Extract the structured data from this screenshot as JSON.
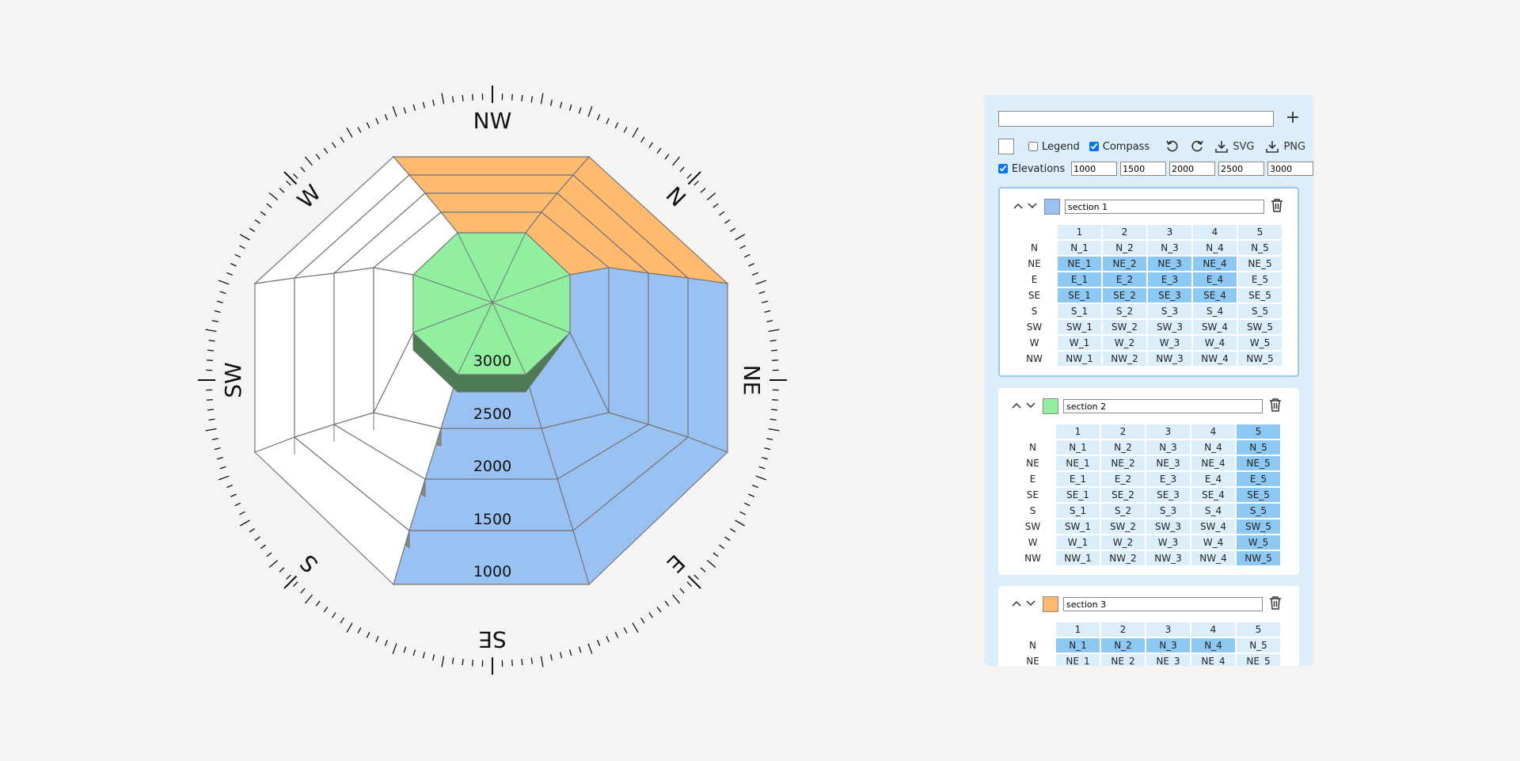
{
  "rose": {
    "compass_labels": [
      "NW",
      "N",
      "NE",
      "E",
      "SE",
      "S",
      "SW",
      "W"
    ],
    "elevations": [
      "3000",
      "2500",
      "2000",
      "1500",
      "1000"
    ],
    "colors": {
      "blue": "#99c2f2",
      "blue_dark": "#4a5a72",
      "green": "#90f0a0",
      "green_dark": "#4b7a55",
      "orange": "#ffba6e",
      "white": "#ffffff",
      "gray_side": "#878787"
    }
  },
  "panel": {
    "title_value": "",
    "plus_label": "+",
    "legend_label": "Legend",
    "legend_checked": false,
    "compass_label": "Compass",
    "compass_checked": true,
    "svg_label": "SVG",
    "png_label": "PNG",
    "elevations_label": "Elevations",
    "elevations_checked": true,
    "elevation_values": [
      "1000",
      "1500",
      "2000",
      "2500",
      "3000"
    ],
    "columns": [
      "1",
      "2",
      "3",
      "4",
      "5"
    ],
    "rows": [
      "N",
      "NE",
      "E",
      "SE",
      "S",
      "SW",
      "W",
      "NW"
    ]
  },
  "sections": [
    {
      "name": "section 1",
      "color": "#99c2f2",
      "active": true,
      "selected": [
        [],
        [
          1,
          2,
          3,
          4
        ],
        [
          1,
          2,
          3,
          4
        ],
        [
          1,
          2,
          3,
          4
        ],
        [],
        [],
        [],
        []
      ],
      "header_selected": []
    },
    {
      "name": "section 2",
      "color": "#90f0a0",
      "active": false,
      "selected": [
        [
          5
        ],
        [
          5
        ],
        [
          5
        ],
        [
          5
        ],
        [
          5
        ],
        [
          5
        ],
        [
          5
        ],
        [
          5
        ]
      ],
      "header_selected": [
        5
      ]
    },
    {
      "name": "section 3",
      "color": "#ffba6e",
      "active": false,
      "selected": [
        [
          1,
          2,
          3,
          4
        ],
        [],
        [],
        [],
        [],
        [],
        [],
        []
      ],
      "header_selected": []
    }
  ]
}
